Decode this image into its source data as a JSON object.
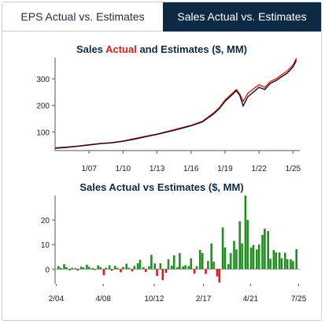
{
  "tabs": [
    {
      "label": "EPS Actual vs. Estimates",
      "active": false
    },
    {
      "label": "Sales Actual vs. Estimates",
      "active": true
    }
  ],
  "colors": {
    "navy": "#0d2a45",
    "actual": "#e01b1b",
    "estimate": "#111111",
    "positive": "#1f8f1f",
    "negative": "#e01b1b"
  },
  "chart_data": [
    {
      "type": "line",
      "title_parts": [
        {
          "text": "Sales ",
          "color": "#0d2a45"
        },
        {
          "text": "Actual",
          "color": "#e01b1b"
        },
        {
          "text": " and Estimates ($, MM)",
          "color": "#0d2a45"
        }
      ],
      "xlabel": "",
      "ylabel": "",
      "xlim": [
        2004.0,
        2025.6
      ],
      "ylim": [
        30,
        380
      ],
      "yticks": [
        100,
        200,
        300
      ],
      "xticks": [
        {
          "x": 2007.0,
          "label": "1/07"
        },
        {
          "x": 2010.0,
          "label": "1/10"
        },
        {
          "x": 2013.0,
          "label": "1/13"
        },
        {
          "x": 2016.0,
          "label": "1/16"
        },
        {
          "x": 2019.0,
          "label": "1/19"
        },
        {
          "x": 2022.0,
          "label": "1/22"
        },
        {
          "x": 2025.0,
          "label": "1/25"
        }
      ],
      "grid": false,
      "series": [
        {
          "name": "Actual",
          "color": "#e01b1b",
          "values": [
            [
              2004.0,
              40
            ],
            [
              2005.0,
              43
            ],
            [
              2006.0,
              47
            ],
            [
              2007.0,
              52
            ],
            [
              2008.0,
              57
            ],
            [
              2009.0,
              60
            ],
            [
              2010.0,
              66
            ],
            [
              2011.0,
              75
            ],
            [
              2012.0,
              84
            ],
            [
              2013.0,
              92
            ],
            [
              2014.0,
              103
            ],
            [
              2015.0,
              114
            ],
            [
              2016.0,
              125
            ],
            [
              2017.0,
              140
            ],
            [
              2018.0,
              172
            ],
            [
              2018.5,
              192
            ],
            [
              2019.0,
              220
            ],
            [
              2019.5,
              240
            ],
            [
              2020.0,
              260
            ],
            [
              2020.3,
              242
            ],
            [
              2020.6,
              215
            ],
            [
              2021.0,
              245
            ],
            [
              2021.5,
              262
            ],
            [
              2022.0,
              278
            ],
            [
              2022.5,
              268
            ],
            [
              2023.0,
              290
            ],
            [
              2023.5,
              300
            ],
            [
              2024.0,
              315
            ],
            [
              2024.5,
              330
            ],
            [
              2025.0,
              352
            ],
            [
              2025.3,
              378
            ]
          ]
        },
        {
          "name": "Estimates",
          "color": "#111111",
          "values": [
            [
              2004.0,
              39
            ],
            [
              2005.0,
              42
            ],
            [
              2006.0,
              46
            ],
            [
              2007.0,
              51
            ],
            [
              2008.0,
              56
            ],
            [
              2009.0,
              59
            ],
            [
              2010.0,
              65
            ],
            [
              2011.0,
              73
            ],
            [
              2012.0,
              82
            ],
            [
              2013.0,
              91
            ],
            [
              2014.0,
              101
            ],
            [
              2015.0,
              112
            ],
            [
              2016.0,
              123
            ],
            [
              2017.0,
              138
            ],
            [
              2018.0,
              168
            ],
            [
              2018.5,
              188
            ],
            [
              2019.0,
              215
            ],
            [
              2019.5,
              235
            ],
            [
              2020.0,
              255
            ],
            [
              2020.3,
              238
            ],
            [
              2020.6,
              198
            ],
            [
              2021.0,
              232
            ],
            [
              2021.5,
              250
            ],
            [
              2022.0,
              268
            ],
            [
              2022.5,
              260
            ],
            [
              2023.0,
              283
            ],
            [
              2023.5,
              293
            ],
            [
              2024.0,
              308
            ],
            [
              2024.5,
              322
            ],
            [
              2025.0,
              345
            ],
            [
              2025.3,
              370
            ]
          ]
        }
      ]
    },
    {
      "type": "bar",
      "title": "Sales Actual vs Estimates ($, MM)",
      "xlabel": "",
      "ylabel": "",
      "xlim": [
        2004.0,
        2025.6
      ],
      "ylim": [
        -6,
        30
      ],
      "yticks": [
        0,
        10,
        20
      ],
      "xticks": [
        {
          "x": 2004.1,
          "label": "2/04"
        },
        {
          "x": 2008.25,
          "label": "4/08"
        },
        {
          "x": 2012.75,
          "label": "10/12"
        },
        {
          "x": 2017.1,
          "label": "2/17"
        },
        {
          "x": 2021.25,
          "label": "4/21"
        },
        {
          "x": 2025.5,
          "label": "7/25"
        }
      ],
      "grid": false,
      "x": [
        2004.3,
        2004.5,
        2004.8,
        2005.0,
        2005.3,
        2005.5,
        2005.8,
        2006.0,
        2006.3,
        2006.5,
        2006.8,
        2007.0,
        2007.3,
        2007.5,
        2007.8,
        2008.0,
        2008.3,
        2008.5,
        2008.8,
        2009.0,
        2009.3,
        2009.5,
        2009.8,
        2010.0,
        2010.3,
        2010.5,
        2010.8,
        2011.0,
        2011.3,
        2011.5,
        2011.8,
        2012.0,
        2012.3,
        2012.5,
        2012.8,
        2013.0,
        2013.3,
        2013.5,
        2013.8,
        2014.0,
        2014.3,
        2014.5,
        2014.8,
        2015.0,
        2015.3,
        2015.5,
        2015.8,
        2016.0,
        2016.3,
        2016.5,
        2016.8,
        2017.0,
        2017.3,
        2017.5,
        2017.8,
        2018.0,
        2018.3,
        2018.5,
        2018.8,
        2019.0,
        2019.3,
        2019.5,
        2019.8,
        2020.0,
        2020.3,
        2020.5,
        2020.8,
        2021.0,
        2021.3,
        2021.5,
        2021.8,
        2022.0,
        2022.3,
        2022.5,
        2022.8,
        2023.0,
        2023.3,
        2023.5,
        2023.8,
        2024.0,
        2024.3,
        2024.5,
        2024.8,
        2025.0,
        2025.3
      ],
      "values": [
        1.2,
        0.5,
        2.0,
        0.8,
        -0.5,
        0.6,
        0.4,
        -0.6,
        1.0,
        0.7,
        1.8,
        0.9,
        0.5,
        -0.4,
        1.5,
        0.8,
        -2.5,
        0.6,
        1.6,
        -0.7,
        1.3,
        0.5,
        -1.3,
        0.9,
        2.2,
        0.6,
        -1.0,
        1.3,
        2.4,
        3.8,
        0.8,
        -1.2,
        1.1,
        5.8,
        2.3,
        -2.8,
        2.4,
        -4.5,
        -1.5,
        4.0,
        1.4,
        5.6,
        0.8,
        6.5,
        1.1,
        1.6,
        1.2,
        4.4,
        -1.9,
        1.2,
        7.8,
        6.5,
        -2.0,
        3.3,
        10.5,
        3.0,
        -3.0,
        -5.5,
        17.0,
        8.8,
        2.0,
        6.5,
        11.5,
        8.0,
        19.5,
        10.5,
        30.0,
        20.0,
        8.8,
        9.8,
        8.0,
        10.0,
        14.0,
        16.5,
        15.5,
        4.2,
        7.8,
        6.8,
        6.8,
        4.4,
        6.7,
        4.0,
        4.0,
        3.2,
        8.1
      ]
    }
  ]
}
